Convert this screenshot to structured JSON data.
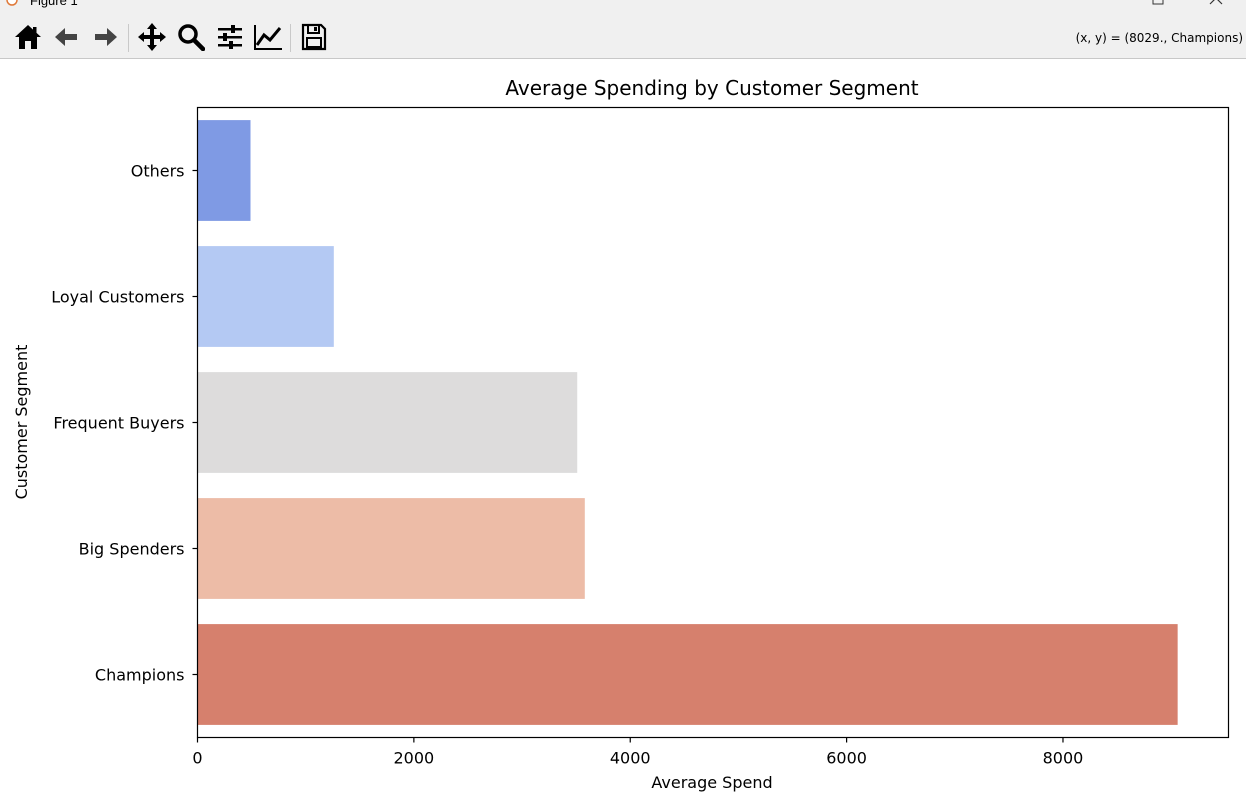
{
  "window": {
    "title": "Figure 1"
  },
  "toolbar": {
    "buttons": [
      {
        "name": "home-button",
        "icon": "home-icon"
      },
      {
        "name": "back-button",
        "icon": "arrow-left-icon"
      },
      {
        "name": "forward-button",
        "icon": "arrow-right-icon"
      },
      {
        "name": "pan-button",
        "icon": "move-icon"
      },
      {
        "name": "zoom-button",
        "icon": "zoom-icon"
      },
      {
        "name": "configure-subplots-button",
        "icon": "sliders-icon"
      },
      {
        "name": "edit-axis-button",
        "icon": "line-chart-icon"
      },
      {
        "name": "save-button",
        "icon": "save-icon"
      }
    ],
    "coords": "(x, y) = (8029., Champions)"
  },
  "chart_data": {
    "type": "bar",
    "orientation": "horizontal",
    "title": "Average Spending by Customer Segment",
    "xlabel": "Average Spend",
    "ylabel": "Customer Segment",
    "categories": [
      "Others",
      "Loyal Customers",
      "Frequent Buyers",
      "Big Spenders",
      "Champions"
    ],
    "values": [
      490,
      1260,
      3510,
      3580,
      9060
    ],
    "colors": [
      "#7f9ae4",
      "#b4c9f3",
      "#dddcdc",
      "#edbca7",
      "#d6806d"
    ],
    "xlim": [
      0,
      9530
    ],
    "xticks": [
      0,
      2000,
      4000,
      6000,
      8000
    ],
    "xtick_labels": [
      "0",
      "2000",
      "4000",
      "6000",
      "8000"
    ],
    "grid": false
  }
}
